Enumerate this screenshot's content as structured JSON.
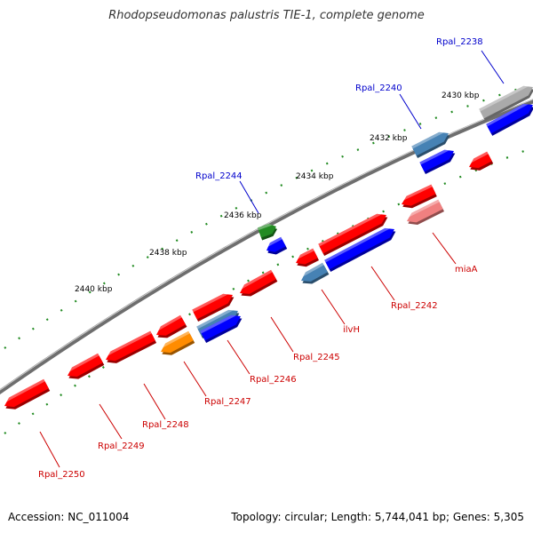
{
  "title": "Rhodopseudomonas palustris TIE-1, complete genome",
  "footer": {
    "accession": "Accession: NC_011004",
    "summary": "Topology: circular; Length: 5,744,041 bp; Genes: 5,305"
  },
  "colors": {
    "forward_red": "#ff0000",
    "reverse_blue": "#0000ff",
    "steel_blue": "#4682b4",
    "green": "#228b22",
    "orange": "#ff8c00",
    "pink": "#f08080",
    "gray": "#aaaaaa",
    "backbone": "#666666",
    "tick_green": "#228b22",
    "label_red": "#cc0000",
    "label_blue": "#0000cc"
  },
  "scale_labels": [
    "2430 kbp",
    "2432 kbp",
    "2434 kbp",
    "2436 kbp",
    "2438 kbp",
    "2440 kbp"
  ],
  "gene_labels": [
    {
      "text": "Rpal_2238",
      "color": "blue"
    },
    {
      "text": "Rpal_2240",
      "color": "blue"
    },
    {
      "text": "Rpal_2244",
      "color": "blue"
    },
    {
      "text": "miaA",
      "color": "red"
    },
    {
      "text": "Rpal_2242",
      "color": "red"
    },
    {
      "text": "ilvH",
      "color": "red"
    },
    {
      "text": "Rpal_2245",
      "color": "red"
    },
    {
      "text": "Rpal_2246",
      "color": "red"
    },
    {
      "text": "Rpal_2247",
      "color": "red"
    },
    {
      "text": "Rpal_2248",
      "color": "red"
    },
    {
      "text": "Rpal_2249",
      "color": "red"
    },
    {
      "text": "Rpal_2250",
      "color": "red"
    }
  ]
}
